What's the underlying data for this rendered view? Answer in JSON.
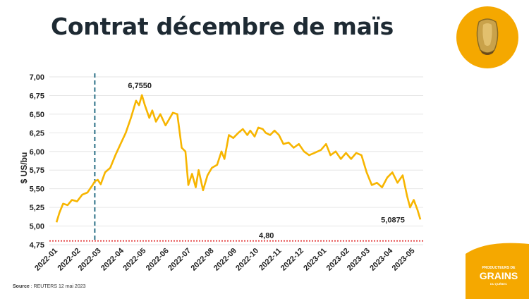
{
  "title": "Contrat décembre de maïs",
  "source": {
    "label": "Source",
    "text": ": REUTERS 12 mai 2023"
  },
  "logo": {
    "line1": "PRODUCTEURS DE",
    "line2": "GRAINS",
    "line3": "DU QUÉBEC"
  },
  "icons": {
    "badge": "corn-kernel-icon"
  },
  "colors": {
    "line": "#f7b500",
    "badge": "#f5a800",
    "banner": "#f5a800",
    "reference": "#e02020",
    "marker": "#2a6f86"
  },
  "chart_data": {
    "type": "line",
    "ylabel": "$ US/bu",
    "xlabel": "",
    "ylim": [
      4.75,
      7.0
    ],
    "yticks": [
      "4,75",
      "5,00",
      "5,25",
      "5,50",
      "5,75",
      "6,00",
      "6,25",
      "6,50",
      "6,75",
      "7,00"
    ],
    "xticks": [
      "2022-01",
      "2022-02",
      "2022-03",
      "2022-04",
      "2022-05",
      "2022-06",
      "2022-07",
      "2022-08",
      "2022-09",
      "2022-10",
      "2022-11",
      "2022-12",
      "2023-01",
      "2023-02",
      "2023-03",
      "2023-04",
      "2023-05"
    ],
    "grid": true,
    "series": [
      {
        "x": [
          "2022-01-03",
          "2022-01-07",
          "2022-01-12",
          "2022-01-18",
          "2022-01-24",
          "2022-01-31",
          "2022-02-07",
          "2022-02-14",
          "2022-02-21",
          "2022-02-24",
          "2022-02-28",
          "2022-03-04",
          "2022-03-10",
          "2022-03-17",
          "2022-03-24",
          "2022-03-31",
          "2022-04-07",
          "2022-04-14",
          "2022-04-21",
          "2022-04-25",
          "2022-04-29",
          "2022-05-03",
          "2022-05-09",
          "2022-05-13",
          "2022-05-18",
          "2022-05-24",
          "2022-05-31",
          "2022-06-06",
          "2022-06-10",
          "2022-06-16",
          "2022-06-22",
          "2022-06-27",
          "2022-07-01",
          "2022-07-06",
          "2022-07-11",
          "2022-07-15",
          "2022-07-21",
          "2022-07-27",
          "2022-08-02",
          "2022-08-09",
          "2022-08-15",
          "2022-08-19",
          "2022-08-25",
          "2022-08-31",
          "2022-09-07",
          "2022-09-13",
          "2022-09-19",
          "2022-09-23",
          "2022-09-29",
          "2022-10-04",
          "2022-10-10",
          "2022-10-14",
          "2022-10-20",
          "2022-10-26",
          "2022-11-01",
          "2022-11-07",
          "2022-11-14",
          "2022-11-21",
          "2022-11-28",
          "2022-12-05",
          "2022-12-12",
          "2022-12-19",
          "2022-12-28",
          "2023-01-04",
          "2023-01-10",
          "2023-01-17",
          "2023-01-24",
          "2023-01-31",
          "2023-02-07",
          "2023-02-14",
          "2023-02-21",
          "2023-02-28",
          "2023-03-07",
          "2023-03-14",
          "2023-03-21",
          "2023-03-28",
          "2023-04-04",
          "2023-04-11",
          "2023-04-18",
          "2023-04-24",
          "2023-04-28",
          "2023-05-03",
          "2023-05-08",
          "2023-05-12"
        ],
        "values": [
          5.05,
          5.18,
          5.3,
          5.28,
          5.35,
          5.33,
          5.42,
          5.45,
          5.55,
          5.6,
          5.62,
          5.56,
          5.72,
          5.78,
          5.95,
          6.1,
          6.25,
          6.45,
          6.68,
          6.62,
          6.755,
          6.62,
          6.45,
          6.55,
          6.4,
          6.5,
          6.35,
          6.45,
          6.52,
          6.5,
          6.05,
          6.0,
          5.55,
          5.7,
          5.52,
          5.75,
          5.48,
          5.68,
          5.78,
          5.82,
          6.0,
          5.9,
          6.22,
          6.18,
          6.25,
          6.3,
          6.22,
          6.28,
          6.2,
          6.32,
          6.3,
          6.25,
          6.22,
          6.28,
          6.22,
          6.1,
          6.12,
          6.05,
          6.1,
          6.0,
          5.95,
          5.98,
          6.02,
          6.1,
          5.95,
          6.0,
          5.9,
          5.98,
          5.9,
          5.98,
          5.95,
          5.72,
          5.55,
          5.58,
          5.52,
          5.65,
          5.72,
          5.58,
          5.68,
          5.4,
          5.25,
          5.35,
          5.22,
          5.0875
        ]
      }
    ],
    "annotations": [
      {
        "label": "6,7550"
      },
      {
        "label": "5,0875"
      },
      {
        "label": "4,80",
        "reference_value": 4.8
      },
      {
        "label": "",
        "vertical_marker_date": "2022-02-24"
      }
    ]
  }
}
